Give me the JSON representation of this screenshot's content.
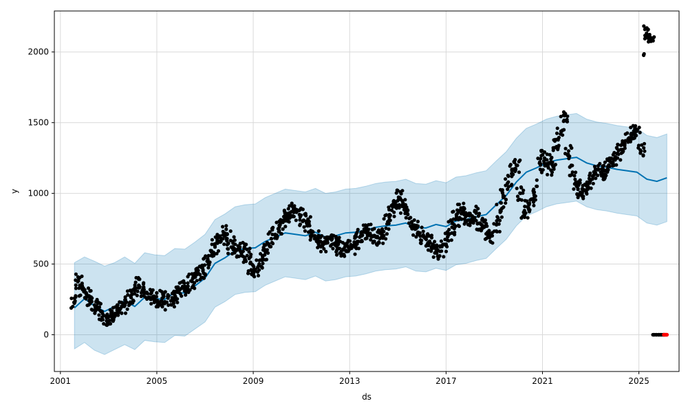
{
  "chart_data": {
    "type": "line",
    "title": "",
    "xlabel": "ds",
    "ylabel": "y",
    "xlim": [
      "2000-10-01",
      "2026-09-01"
    ],
    "ylim": [
      -260,
      2290
    ],
    "grid": true,
    "x_ticks": [
      "2001",
      "2005",
      "2009",
      "2013",
      "2017",
      "2021",
      "2025"
    ],
    "y_ticks": [
      0,
      500,
      1000,
      1500,
      2000
    ],
    "colors": {
      "forecast_line": "#0072B2",
      "interval_band": "#0072B2",
      "observed_points": "#000000",
      "future_points": "#ff0000"
    },
    "series": [
      {
        "name": "",
        "kind": "forecast",
        "x": [
          "2001-08-01",
          "2002-01-01",
          "2002-06-01",
          "2002-11-01",
          "2003-04-01",
          "2003-09-01",
          "2004-02-01",
          "2004-07-01",
          "2004-12-01",
          "2005-05-01",
          "2005-10-01",
          "2006-03-01",
          "2006-08-01",
          "2007-01-01",
          "2007-06-01",
          "2007-11-01",
          "2008-04-01",
          "2008-09-01",
          "2009-02-01",
          "2009-07-01",
          "2009-12-01",
          "2010-05-01",
          "2010-10-01",
          "2011-03-01",
          "2011-08-01",
          "2012-01-01",
          "2012-06-01",
          "2012-11-01",
          "2013-04-01",
          "2013-09-01",
          "2014-02-01",
          "2014-07-01",
          "2014-12-01",
          "2015-05-01",
          "2015-10-01",
          "2016-03-01",
          "2016-08-01",
          "2017-01-01",
          "2017-06-01",
          "2017-11-01",
          "2018-04-01",
          "2018-09-01",
          "2019-02-01",
          "2019-07-01",
          "2019-12-01",
          "2020-05-01",
          "2020-10-01",
          "2021-03-01",
          "2021-08-01",
          "2022-01-01",
          "2022-06-01",
          "2022-11-01",
          "2023-04-01",
          "2023-09-01",
          "2024-02-01",
          "2024-07-01",
          "2024-12-01",
          "2025-05-01",
          "2025-10-01",
          "2026-03-01"
        ],
        "values": [
          190,
          255,
          205,
          165,
          200,
          240,
          200,
          265,
          255,
          250,
          300,
          295,
          345,
          400,
          505,
          545,
          595,
          610,
          615,
          660,
          690,
          720,
          710,
          700,
          725,
          690,
          700,
          720,
          725,
          740,
          760,
          770,
          775,
          790,
          760,
          755,
          780,
          765,
          805,
          815,
          835,
          850,
          920,
          985,
          1080,
          1150,
          1180,
          1215,
          1235,
          1245,
          1255,
          1215,
          1195,
          1185,
          1170,
          1160,
          1150,
          1100,
          1085,
          1110
        ]
      },
      {
        "name": "",
        "kind": "uncertainty_upper",
        "x": [
          "2001-08-01",
          "2002-01-01",
          "2002-06-01",
          "2002-11-01",
          "2003-04-01",
          "2003-09-01",
          "2004-02-01",
          "2004-07-01",
          "2004-12-01",
          "2005-05-01",
          "2005-10-01",
          "2006-03-01",
          "2006-08-01",
          "2007-01-01",
          "2007-06-01",
          "2007-11-01",
          "2008-04-01",
          "2008-09-01",
          "2009-02-01",
          "2009-07-01",
          "2009-12-01",
          "2010-05-01",
          "2010-10-01",
          "2011-03-01",
          "2011-08-01",
          "2012-01-01",
          "2012-06-01",
          "2012-11-01",
          "2013-04-01",
          "2013-09-01",
          "2014-02-01",
          "2014-07-01",
          "2014-12-01",
          "2015-05-01",
          "2015-10-01",
          "2016-03-01",
          "2016-08-01",
          "2017-01-01",
          "2017-06-01",
          "2017-11-01",
          "2018-04-01",
          "2018-09-01",
          "2019-02-01",
          "2019-07-01",
          "2019-12-01",
          "2020-05-01",
          "2020-10-01",
          "2021-03-01",
          "2021-08-01",
          "2022-01-01",
          "2022-06-01",
          "2022-11-01",
          "2023-04-01",
          "2023-09-01",
          "2024-02-01",
          "2024-07-01",
          "2024-12-01",
          "2025-05-01",
          "2025-10-01",
          "2026-03-01"
        ],
        "values": [
          510,
          550,
          520,
          485,
          510,
          550,
          505,
          580,
          565,
          560,
          610,
          605,
          655,
          710,
          815,
          855,
          905,
          920,
          925,
          970,
          1000,
          1030,
          1020,
          1010,
          1035,
          1000,
          1010,
          1030,
          1035,
          1050,
          1070,
          1080,
          1085,
          1100,
          1070,
          1065,
          1090,
          1075,
          1115,
          1125,
          1145,
          1160,
          1230,
          1295,
          1390,
          1460,
          1490,
          1525,
          1545,
          1555,
          1565,
          1525,
          1505,
          1495,
          1480,
          1470,
          1460,
          1410,
          1395,
          1420
        ]
      },
      {
        "name": "",
        "kind": "uncertainty_lower",
        "x": [
          "2001-08-01",
          "2002-01-01",
          "2002-06-01",
          "2002-11-01",
          "2003-04-01",
          "2003-09-01",
          "2004-02-01",
          "2004-07-01",
          "2004-12-01",
          "2005-05-01",
          "2005-10-01",
          "2006-03-01",
          "2006-08-01",
          "2007-01-01",
          "2007-06-01",
          "2007-11-01",
          "2008-04-01",
          "2008-09-01",
          "2009-02-01",
          "2009-07-01",
          "2009-12-01",
          "2010-05-01",
          "2010-10-01",
          "2011-03-01",
          "2011-08-01",
          "2012-01-01",
          "2012-06-01",
          "2012-11-01",
          "2013-04-01",
          "2013-09-01",
          "2014-02-01",
          "2014-07-01",
          "2014-12-01",
          "2015-05-01",
          "2015-10-01",
          "2016-03-01",
          "2016-08-01",
          "2017-01-01",
          "2017-06-01",
          "2017-11-01",
          "2018-04-01",
          "2018-09-01",
          "2019-02-01",
          "2019-07-01",
          "2019-12-01",
          "2020-05-01",
          "2020-10-01",
          "2021-03-01",
          "2021-08-01",
          "2022-01-01",
          "2022-06-01",
          "2022-11-01",
          "2023-04-01",
          "2023-09-01",
          "2024-02-01",
          "2024-07-01",
          "2024-12-01",
          "2025-05-01",
          "2025-10-01",
          "2026-03-01"
        ],
        "values": [
          -100,
          -55,
          -110,
          -140,
          -105,
          -70,
          -105,
          -40,
          -50,
          -55,
          -5,
          -10,
          40,
          90,
          195,
          235,
          285,
          300,
          305,
          350,
          380,
          410,
          400,
          390,
          415,
          380,
          390,
          410,
          415,
          430,
          450,
          460,
          465,
          480,
          450,
          445,
          470,
          455,
          495,
          505,
          525,
          540,
          610,
          675,
          770,
          840,
          870,
          905,
          925,
          935,
          945,
          905,
          885,
          875,
          860,
          850,
          840,
          790,
          775,
          800
        ]
      },
      {
        "name": "",
        "kind": "observed",
        "x": [
          "2001-08-01",
          "2001-10-01",
          "2001-12-01",
          "2002-02-01",
          "2002-04-01",
          "2002-06-01",
          "2002-08-01",
          "2002-10-01",
          "2002-12-01",
          "2003-02-01",
          "2003-04-01",
          "2003-06-01",
          "2003-08-01",
          "2003-10-01",
          "2003-12-01",
          "2004-02-01",
          "2004-04-01",
          "2004-06-01",
          "2004-08-01",
          "2004-10-01",
          "2004-12-01",
          "2005-02-01",
          "2005-04-01",
          "2005-06-01",
          "2005-08-01",
          "2005-10-01",
          "2005-12-01",
          "2006-02-01",
          "2006-04-01",
          "2006-06-01",
          "2006-08-01",
          "2006-10-01",
          "2006-12-01",
          "2007-02-01",
          "2007-04-01",
          "2007-06-01",
          "2007-08-01",
          "2007-10-01",
          "2007-12-01",
          "2008-02-01",
          "2008-04-01",
          "2008-06-01",
          "2008-08-01",
          "2008-10-01",
          "2008-12-01",
          "2009-02-01",
          "2009-04-01",
          "2009-06-01",
          "2009-08-01",
          "2009-10-01",
          "2009-12-01",
          "2010-02-01",
          "2010-04-01",
          "2010-06-01",
          "2010-08-01",
          "2010-10-01",
          "2010-12-01",
          "2011-02-01",
          "2011-04-01",
          "2011-06-01",
          "2011-08-01",
          "2011-10-01",
          "2011-12-01",
          "2012-02-01",
          "2012-04-01",
          "2012-06-01",
          "2012-08-01",
          "2012-10-01",
          "2012-12-01",
          "2013-02-01",
          "2013-04-01",
          "2013-06-01",
          "2013-08-01",
          "2013-10-01",
          "2013-12-01",
          "2014-02-01",
          "2014-04-01",
          "2014-06-01",
          "2014-08-01",
          "2014-10-01",
          "2014-12-01",
          "2015-02-01",
          "2015-04-01",
          "2015-06-01",
          "2015-08-01",
          "2015-10-01",
          "2015-12-01",
          "2016-02-01",
          "2016-04-01",
          "2016-06-01",
          "2016-08-01",
          "2016-10-01",
          "2016-12-01",
          "2017-02-01",
          "2017-04-01",
          "2017-06-01",
          "2017-08-01",
          "2017-10-01",
          "2017-12-01",
          "2018-02-01",
          "2018-04-01",
          "2018-06-01",
          "2018-08-01",
          "2018-10-01",
          "2018-12-01",
          "2019-02-01",
          "2019-04-01",
          "2019-06-01",
          "2019-08-01",
          "2019-10-01",
          "2019-12-01",
          "2020-02-01",
          "2020-04-01",
          "2020-06-01",
          "2020-08-01",
          "2020-10-01",
          "2020-12-01",
          "2021-02-01",
          "2021-04-01",
          "2021-06-01",
          "2021-08-01",
          "2021-10-01",
          "2021-12-01",
          "2022-02-01",
          "2022-04-01",
          "2022-06-01",
          "2022-08-01",
          "2022-10-01",
          "2022-12-01",
          "2023-02-01",
          "2023-04-01",
          "2023-06-01",
          "2023-08-01",
          "2023-10-01",
          "2023-12-01",
          "2024-02-01",
          "2024-04-01",
          "2024-06-01",
          "2024-08-01",
          "2024-10-01",
          "2024-12-01",
          "2025-02-01"
        ],
        "values": [
          230,
          380,
          320,
          290,
          260,
          210,
          180,
          150,
          120,
          130,
          140,
          160,
          200,
          230,
          270,
          290,
          350,
          320,
          300,
          290,
          250,
          230,
          260,
          230,
          240,
          280,
          300,
          330,
          340,
          380,
          410,
          430,
          450,
          520,
          560,
          620,
          660,
          730,
          680,
          620,
          640,
          600,
          590,
          560,
          460,
          450,
          500,
          560,
          600,
          680,
          710,
          760,
          810,
          850,
          870,
          880,
          850,
          810,
          780,
          720,
          680,
          660,
          640,
          650,
          680,
          650,
          610,
          600,
          590,
          620,
          650,
          690,
          730,
          730,
          700,
          690,
          680,
          730,
          800,
          880,
          940,
          970,
          910,
          850,
          800,
          750,
          720,
          690,
          650,
          610,
          580,
          590,
          640,
          700,
          760,
          820,
          880,
          850,
          810,
          840,
          860,
          790,
          760,
          720,
          700,
          780,
          880,
          980,
          1080,
          1170,
          1200,
          1000,
          870,
          900,
          960,
          1050,
          1200,
          1250,
          1180,
          1220,
          1330,
          1420,
          1550,
          1300,
          1150,
          1050,
          1000,
          1020,
          1080,
          1120,
          1170,
          1150,
          1160,
          1200,
          1220,
          1280,
          1310,
          1350,
          1380,
          1420,
          1440,
          1300
        ]
      },
      {
        "name": "",
        "kind": "observed_2025_high",
        "x": [
          "2025-03-15",
          "2025-04-01",
          "2025-04-15",
          "2025-05-01",
          "2025-05-15",
          "2025-06-01",
          "2025-06-15",
          "2025-07-01",
          "2025-07-15",
          "2025-08-01"
        ],
        "values": [
          1980,
          2160,
          2100,
          2170,
          2120,
          2090,
          2080,
          2100,
          2090,
          2095
        ]
      },
      {
        "name": "",
        "kind": "observed_near_zero",
        "x": [
          "2025-08-01",
          "2025-09-01",
          "2025-10-01",
          "2025-11-01",
          "2025-12-01",
          "2026-01-01",
          "2026-02-01"
        ],
        "values": [
          0,
          0,
          0,
          0,
          0,
          0,
          0
        ]
      },
      {
        "name": "",
        "kind": "future_points",
        "x": [
          "2026-01-15",
          "2026-02-01",
          "2026-02-15",
          "2026-03-01"
        ],
        "values": [
          0,
          0,
          0,
          0
        ]
      }
    ]
  }
}
